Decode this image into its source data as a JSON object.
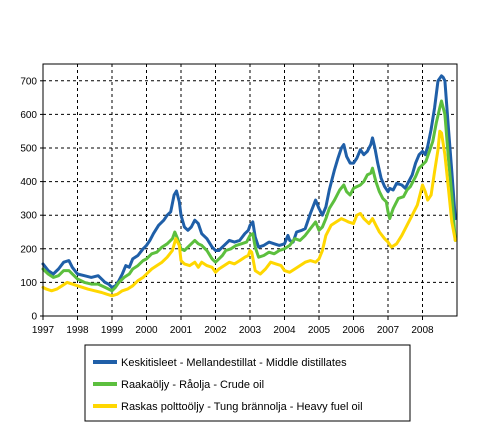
{
  "chart_data": {
    "type": "line",
    "title": "",
    "xlabel": "",
    "ylabel": "",
    "x_ticks": [
      "1997",
      "1998",
      "1999",
      "2000",
      "2001",
      "2002",
      "2003",
      "2004",
      "2005",
      "2006",
      "2007",
      "2008"
    ],
    "y_ticks": [
      "0",
      "100",
      "200",
      "300",
      "400",
      "500",
      "600",
      "700"
    ],
    "xlim": [
      1997,
      2009
    ],
    "ylim": [
      0,
      750
    ],
    "grid": true,
    "legend_position": "bottom",
    "series": [
      {
        "name": "Keskitisleet - Mellandestillat - Middle distillates",
        "color": "#1f5fa8",
        "points": [
          [
            1997.0,
            155
          ],
          [
            1997.15,
            135
          ],
          [
            1997.3,
            125
          ],
          [
            1997.45,
            140
          ],
          [
            1997.6,
            160
          ],
          [
            1997.75,
            165
          ],
          [
            1997.85,
            145
          ],
          [
            1998.0,
            125
          ],
          [
            1998.2,
            120
          ],
          [
            1998.4,
            115
          ],
          [
            1998.6,
            120
          ],
          [
            1998.8,
            100
          ],
          [
            1998.9,
            95
          ],
          [
            1999.0,
            85
          ],
          [
            1999.1,
            90
          ],
          [
            1999.2,
            105
          ],
          [
            1999.3,
            125
          ],
          [
            1999.4,
            150
          ],
          [
            1999.5,
            145
          ],
          [
            1999.6,
            170
          ],
          [
            1999.75,
            180
          ],
          [
            1999.9,
            200
          ],
          [
            2000.0,
            210
          ],
          [
            2000.1,
            225
          ],
          [
            2000.2,
            245
          ],
          [
            2000.35,
            270
          ],
          [
            2000.5,
            285
          ],
          [
            2000.6,
            300
          ],
          [
            2000.7,
            310
          ],
          [
            2000.8,
            360
          ],
          [
            2000.87,
            372
          ],
          [
            2000.95,
            340
          ],
          [
            2001.0,
            300
          ],
          [
            2001.1,
            265
          ],
          [
            2001.2,
            255
          ],
          [
            2001.3,
            265
          ],
          [
            2001.4,
            285
          ],
          [
            2001.5,
            275
          ],
          [
            2001.6,
            245
          ],
          [
            2001.75,
            230
          ],
          [
            2001.9,
            205
          ],
          [
            2002.0,
            195
          ],
          [
            2002.1,
            195
          ],
          [
            2002.2,
            205
          ],
          [
            2002.3,
            215
          ],
          [
            2002.4,
            225
          ],
          [
            2002.55,
            220
          ],
          [
            2002.7,
            225
          ],
          [
            2002.85,
            245
          ],
          [
            2002.95,
            255
          ],
          [
            2003.0,
            270
          ],
          [
            2003.08,
            280
          ],
          [
            2003.15,
            235
          ],
          [
            2003.25,
            205
          ],
          [
            2003.4,
            210
          ],
          [
            2003.55,
            220
          ],
          [
            2003.7,
            215
          ],
          [
            2003.85,
            210
          ],
          [
            2004.0,
            215
          ],
          [
            2004.1,
            240
          ],
          [
            2004.15,
            225
          ],
          [
            2004.25,
            220
          ],
          [
            2004.35,
            250
          ],
          [
            2004.5,
            255
          ],
          [
            2004.6,
            260
          ],
          [
            2004.75,
            305
          ],
          [
            2004.9,
            345
          ],
          [
            2005.0,
            320
          ],
          [
            2005.1,
            300
          ],
          [
            2005.2,
            325
          ],
          [
            2005.3,
            375
          ],
          [
            2005.45,
            435
          ],
          [
            2005.55,
            470
          ],
          [
            2005.65,
            500
          ],
          [
            2005.72,
            510
          ],
          [
            2005.8,
            475
          ],
          [
            2005.9,
            455
          ],
          [
            2006.0,
            455
          ],
          [
            2006.1,
            470
          ],
          [
            2006.2,
            495
          ],
          [
            2006.3,
            480
          ],
          [
            2006.4,
            490
          ],
          [
            2006.5,
            510
          ],
          [
            2006.55,
            530
          ],
          [
            2006.62,
            500
          ],
          [
            2006.7,
            455
          ],
          [
            2006.8,
            410
          ],
          [
            2006.9,
            385
          ],
          [
            2007.0,
            370
          ],
          [
            2007.05,
            380
          ],
          [
            2007.15,
            375
          ],
          [
            2007.25,
            395
          ],
          [
            2007.4,
            390
          ],
          [
            2007.5,
            380
          ],
          [
            2007.6,
            400
          ],
          [
            2007.7,
            420
          ],
          [
            2007.8,
            455
          ],
          [
            2007.9,
            480
          ],
          [
            2008.0,
            490
          ],
          [
            2008.08,
            480
          ],
          [
            2008.15,
            505
          ],
          [
            2008.25,
            555
          ],
          [
            2008.35,
            620
          ],
          [
            2008.45,
            700
          ],
          [
            2008.55,
            715
          ],
          [
            2008.6,
            710
          ],
          [
            2008.65,
            700
          ],
          [
            2008.75,
            560
          ],
          [
            2008.85,
            430
          ],
          [
            2008.95,
            290
          ]
        ]
      },
      {
        "name": "Raakaöljy - Råolja - Crude oil",
        "color": "#5cbf3e",
        "points": [
          [
            1997.0,
            140
          ],
          [
            1997.15,
            125
          ],
          [
            1997.3,
            115
          ],
          [
            1997.45,
            120
          ],
          [
            1997.6,
            135
          ],
          [
            1997.75,
            135
          ],
          [
            1997.9,
            120
          ],
          [
            1998.0,
            110
          ],
          [
            1998.2,
            100
          ],
          [
            1998.4,
            95
          ],
          [
            1998.6,
            95
          ],
          [
            1998.8,
            85
          ],
          [
            1998.9,
            80
          ],
          [
            1999.0,
            75
          ],
          [
            1999.1,
            85
          ],
          [
            1999.2,
            100
          ],
          [
            1999.35,
            115
          ],
          [
            1999.5,
            125
          ],
          [
            1999.6,
            140
          ],
          [
            1999.75,
            150
          ],
          [
            1999.9,
            165
          ],
          [
            2000.0,
            170
          ],
          [
            2000.15,
            185
          ],
          [
            2000.3,
            190
          ],
          [
            2000.45,
            205
          ],
          [
            2000.6,
            215
          ],
          [
            2000.75,
            230
          ],
          [
            2000.82,
            250
          ],
          [
            2000.9,
            230
          ],
          [
            2001.0,
            200
          ],
          [
            2001.1,
            195
          ],
          [
            2001.2,
            205
          ],
          [
            2001.3,
            215
          ],
          [
            2001.4,
            225
          ],
          [
            2001.5,
            215
          ],
          [
            2001.6,
            210
          ],
          [
            2001.75,
            195
          ],
          [
            2001.9,
            170
          ],
          [
            2002.0,
            160
          ],
          [
            2002.1,
            170
          ],
          [
            2002.2,
            180
          ],
          [
            2002.3,
            195
          ],
          [
            2002.45,
            200
          ],
          [
            2002.6,
            210
          ],
          [
            2002.75,
            215
          ],
          [
            2002.9,
            220
          ],
          [
            2003.0,
            240
          ],
          [
            2003.08,
            245
          ],
          [
            2003.15,
            205
          ],
          [
            2003.25,
            175
          ],
          [
            2003.4,
            180
          ],
          [
            2003.55,
            190
          ],
          [
            2003.7,
            185
          ],
          [
            2003.85,
            195
          ],
          [
            2004.0,
            200
          ],
          [
            2004.15,
            210
          ],
          [
            2004.3,
            230
          ],
          [
            2004.45,
            225
          ],
          [
            2004.6,
            240
          ],
          [
            2004.75,
            260
          ],
          [
            2004.9,
            280
          ],
          [
            2005.0,
            255
          ],
          [
            2005.1,
            265
          ],
          [
            2005.2,
            290
          ],
          [
            2005.3,
            320
          ],
          [
            2005.45,
            345
          ],
          [
            2005.6,
            375
          ],
          [
            2005.72,
            390
          ],
          [
            2005.8,
            370
          ],
          [
            2005.9,
            360
          ],
          [
            2006.0,
            380
          ],
          [
            2006.1,
            385
          ],
          [
            2006.2,
            390
          ],
          [
            2006.3,
            400
          ],
          [
            2006.4,
            420
          ],
          [
            2006.5,
            425
          ],
          [
            2006.55,
            440
          ],
          [
            2006.65,
            400
          ],
          [
            2006.75,
            370
          ],
          [
            2006.85,
            350
          ],
          [
            2006.95,
            340
          ],
          [
            2007.0,
            310
          ],
          [
            2007.05,
            290
          ],
          [
            2007.15,
            320
          ],
          [
            2007.3,
            350
          ],
          [
            2007.45,
            355
          ],
          [
            2007.55,
            375
          ],
          [
            2007.65,
            385
          ],
          [
            2007.8,
            415
          ],
          [
            2007.9,
            440
          ],
          [
            2008.0,
            450
          ],
          [
            2008.1,
            460
          ],
          [
            2008.2,
            490
          ],
          [
            2008.3,
            520
          ],
          [
            2008.4,
            575
          ],
          [
            2008.5,
            620
          ],
          [
            2008.55,
            640
          ],
          [
            2008.65,
            600
          ],
          [
            2008.75,
            470
          ],
          [
            2008.85,
            360
          ],
          [
            2008.95,
            225
          ]
        ]
      },
      {
        "name": "Raskas polttoöljy - Tung brännolja - Heavy fuel oil",
        "color": "#ffd700",
        "points": [
          [
            1997.0,
            85
          ],
          [
            1997.1,
            80
          ],
          [
            1997.25,
            75
          ],
          [
            1997.4,
            80
          ],
          [
            1997.55,
            90
          ],
          [
            1997.7,
            100
          ],
          [
            1997.85,
            95
          ],
          [
            1998.0,
            90
          ],
          [
            1998.15,
            85
          ],
          [
            1998.3,
            80
          ],
          [
            1998.5,
            75
          ],
          [
            1998.7,
            70
          ],
          [
            1998.85,
            65
          ],
          [
            1999.0,
            60
          ],
          [
            1999.15,
            65
          ],
          [
            1999.3,
            75
          ],
          [
            1999.45,
            80
          ],
          [
            1999.6,
            90
          ],
          [
            1999.75,
            105
          ],
          [
            1999.9,
            115
          ],
          [
            2000.0,
            125
          ],
          [
            2000.15,
            140
          ],
          [
            2000.3,
            150
          ],
          [
            2000.45,
            160
          ],
          [
            2000.6,
            175
          ],
          [
            2000.75,
            195
          ],
          [
            2000.85,
            230
          ],
          [
            2000.95,
            210
          ],
          [
            2001.0,
            165
          ],
          [
            2001.1,
            155
          ],
          [
            2001.25,
            150
          ],
          [
            2001.4,
            160
          ],
          [
            2001.5,
            145
          ],
          [
            2001.6,
            160
          ],
          [
            2001.75,
            150
          ],
          [
            2001.9,
            145
          ],
          [
            2002.0,
            130
          ],
          [
            2002.1,
            140
          ],
          [
            2002.25,
            150
          ],
          [
            2002.4,
            160
          ],
          [
            2002.55,
            155
          ],
          [
            2002.7,
            165
          ],
          [
            2002.85,
            175
          ],
          [
            2002.95,
            180
          ],
          [
            2003.0,
            195
          ],
          [
            2003.05,
            190
          ],
          [
            2003.15,
            135
          ],
          [
            2003.3,
            125
          ],
          [
            2003.45,
            140
          ],
          [
            2003.6,
            160
          ],
          [
            2003.75,
            155
          ],
          [
            2003.9,
            150
          ],
          [
            2004.0,
            135
          ],
          [
            2004.15,
            130
          ],
          [
            2004.3,
            140
          ],
          [
            2004.45,
            150
          ],
          [
            2004.6,
            160
          ],
          [
            2004.75,
            165
          ],
          [
            2004.9,
            160
          ],
          [
            2005.0,
            170
          ],
          [
            2005.1,
            195
          ],
          [
            2005.2,
            240
          ],
          [
            2005.35,
            270
          ],
          [
            2005.5,
            280
          ],
          [
            2005.65,
            290
          ],
          [
            2005.75,
            285
          ],
          [
            2005.85,
            280
          ],
          [
            2006.0,
            275
          ],
          [
            2006.1,
            300
          ],
          [
            2006.2,
            305
          ],
          [
            2006.3,
            290
          ],
          [
            2006.45,
            275
          ],
          [
            2006.55,
            290
          ],
          [
            2006.65,
            270
          ],
          [
            2006.75,
            250
          ],
          [
            2006.9,
            230
          ],
          [
            2007.0,
            220
          ],
          [
            2007.1,
            205
          ],
          [
            2007.25,
            215
          ],
          [
            2007.4,
            240
          ],
          [
            2007.55,
            270
          ],
          [
            2007.7,
            300
          ],
          [
            2007.85,
            330
          ],
          [
            2008.0,
            390
          ],
          [
            2008.08,
            370
          ],
          [
            2008.15,
            345
          ],
          [
            2008.25,
            360
          ],
          [
            2008.35,
            430
          ],
          [
            2008.45,
            495
          ],
          [
            2008.5,
            550
          ],
          [
            2008.55,
            545
          ],
          [
            2008.65,
            480
          ],
          [
            2008.75,
            380
          ],
          [
            2008.85,
            280
          ],
          [
            2008.95,
            225
          ]
        ]
      }
    ]
  }
}
